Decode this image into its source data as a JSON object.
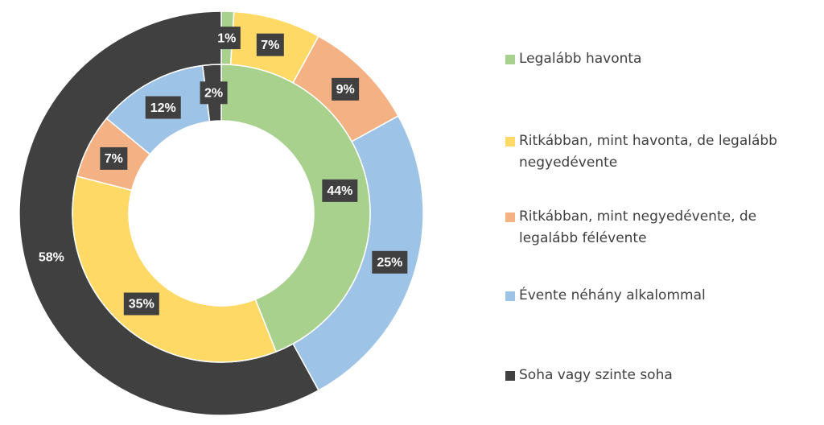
{
  "chart_data": {
    "type": "donut",
    "categories": [
      "Legalább havonta",
      "Ritkábban, mint havonta, de legalább negyedévente",
      "Ritkábban, mint negyedévente, de legalább félévente",
      "Évente néhány alkalommal",
      "Soha vagy szinte soha"
    ],
    "colors": [
      "#a9d18e",
      "#ffd966",
      "#f4b183",
      "#9dc3e6",
      "#404040"
    ],
    "series": [
      {
        "values": [
          1,
          7,
          9,
          25,
          58
        ],
        "value_labels": [
          "1%",
          "7%",
          "9%",
          "25%",
          "58%"
        ]
      },
      {
        "values": [
          44,
          35,
          7,
          12,
          2
        ],
        "value_labels": [
          "44%",
          "35%",
          "7%",
          "12%",
          "2%"
        ]
      }
    ],
    "legend": "right"
  }
}
